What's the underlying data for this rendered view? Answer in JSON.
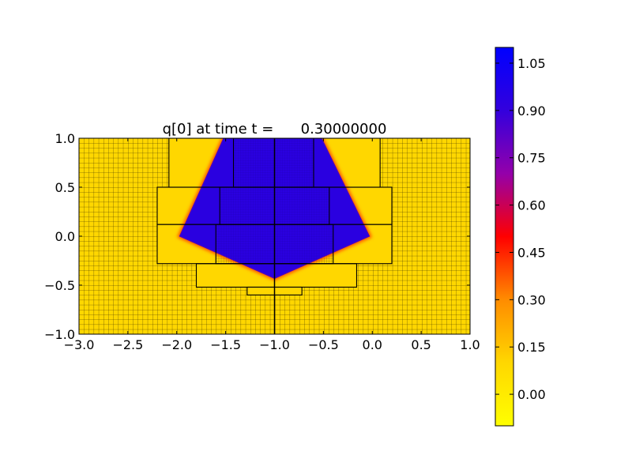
{
  "chart_data": {
    "type": "heatmap",
    "title": "q[0] at time t =      0.30000000",
    "xlim": [
      -3.0,
      1.0
    ],
    "ylim": [
      -1.0,
      1.0
    ],
    "xticks": [
      "−3.0",
      "−2.5",
      "−2.0",
      "−1.5",
      "−1.0",
      "−0.5",
      "0.0",
      "0.5",
      "1.0"
    ],
    "xtick_values": [
      -3.0,
      -2.5,
      -2.0,
      -1.5,
      -1.0,
      -0.5,
      0.0,
      0.5,
      1.0
    ],
    "yticks": [
      "−1.0",
      "−0.5",
      "0.0",
      "0.5",
      "1.0"
    ],
    "ytick_values": [
      -1.0,
      -0.5,
      0.0,
      0.5,
      1.0
    ],
    "colorbar": {
      "min": -0.1,
      "max": 1.1,
      "ticks": [
        "0.00",
        "0.15",
        "0.30",
        "0.45",
        "0.60",
        "0.75",
        "0.90",
        "1.05"
      ],
      "tick_values": [
        0.0,
        0.15,
        0.3,
        0.45,
        0.6,
        0.75,
        0.9,
        1.05
      ],
      "colormap": [
        "#ffff00",
        "#ffd700",
        "#ff8c00",
        "#ff0000",
        "#9400aa",
        "#3300dd",
        "#0000ff"
      ]
    },
    "field": {
      "background_value": 0.0,
      "region_value": 1.0,
      "region_polygon": [
        [
          -1.52,
          1.0
        ],
        [
          -0.52,
          1.0
        ],
        [
          -0.03,
          0.0
        ],
        [
          -1.0,
          -0.43
        ],
        [
          -1.97,
          0.0
        ]
      ],
      "low_color": "#ffd700",
      "high_color": "#2a00e0"
    },
    "amr_patches": [
      {
        "level": 2,
        "x": [
          -2.08,
          0.08
        ],
        "y": [
          0.5,
          1.0
        ]
      },
      {
        "level": 2,
        "x": [
          -2.2,
          0.2
        ],
        "y": [
          0.12,
          0.5
        ]
      },
      {
        "level": 2,
        "x": [
          -2.2,
          0.2
        ],
        "y": [
          -0.28,
          0.12
        ]
      },
      {
        "level": 2,
        "x": [
          -1.8,
          -0.16
        ],
        "y": [
          -0.52,
          -0.28
        ]
      },
      {
        "level": 2,
        "x": [
          -1.28,
          -0.72
        ],
        "y": [
          -0.6,
          -0.52
        ]
      },
      {
        "level": 3,
        "x": [
          -1.42,
          -0.6
        ],
        "y": [
          0.5,
          1.0
        ]
      },
      {
        "level": 3,
        "x": [
          -1.56,
          -0.44
        ],
        "y": [
          0.12,
          0.5
        ]
      },
      {
        "level": 3,
        "x": [
          -1.6,
          -0.4
        ],
        "y": [
          -0.28,
          0.12
        ]
      }
    ],
    "vertical_line_x": -1.0
  }
}
